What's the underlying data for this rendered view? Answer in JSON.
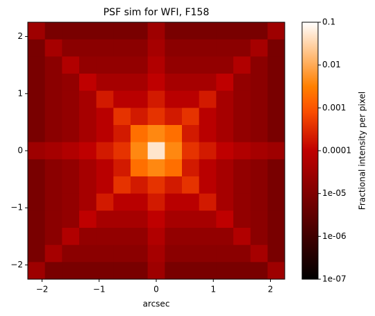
{
  "chart_data": {
    "type": "heatmap",
    "title": "PSF sim for WFI, F158",
    "x_label": "arcsec",
    "colorbar_label": "Fractional intensity per pixel",
    "colormap": "gist_heat",
    "log_color": true,
    "clim": [
      1e-07,
      0.1
    ],
    "cticks": [
      {
        "value": 1e-07,
        "label": "1e-07"
      },
      {
        "value": 1e-06,
        "label": "1e-06"
      },
      {
        "value": 1e-05,
        "label": "1e-05"
      },
      0.0001,
      0.001,
      0.01,
      0.1
    ],
    "xlim": [
      -2.25,
      2.25
    ],
    "ylim": [
      -2.25,
      2.25
    ],
    "xticks": [
      {
        "value": -2,
        "label": "−2"
      },
      {
        "value": -1,
        "label": "−1"
      },
      0,
      1,
      2
    ],
    "yticks": [
      {
        "value": -2,
        "label": "−2"
      },
      {
        "value": -1,
        "label": "−1"
      },
      0,
      1,
      2
    ],
    "z": [
      [
        3e-05,
        8e-06,
        8e-06,
        8e-06,
        8e-06,
        8e-06,
        8e-06,
        3e-05,
        8e-06,
        8e-06,
        8e-06,
        8e-06,
        8e-06,
        8e-06,
        3e-05
      ],
      [
        8e-06,
        4e-05,
        1.5e-05,
        1.5e-05,
        1.5e-05,
        1.5e-05,
        1.5e-05,
        4e-05,
        1.5e-05,
        1.5e-05,
        1.5e-05,
        1.5e-05,
        1.5e-05,
        4e-05,
        8e-06
      ],
      [
        8e-06,
        1.5e-05,
        6e-05,
        2e-05,
        2e-05,
        2e-05,
        2e-05,
        6e-05,
        2e-05,
        2e-05,
        2e-05,
        2e-05,
        6e-05,
        1.5e-05,
        8e-06
      ],
      [
        8e-06,
        1.5e-05,
        2e-05,
        0.0001,
        4e-05,
        4e-05,
        4e-05,
        0.0001,
        4e-05,
        4e-05,
        4e-05,
        0.0001,
        2e-05,
        1.5e-05,
        8e-06
      ],
      [
        8e-06,
        1.5e-05,
        2e-05,
        4e-05,
        0.0002,
        8e-05,
        8e-05,
        0.0002,
        8e-05,
        8e-05,
        0.0002,
        4e-05,
        2e-05,
        1.5e-05,
        8e-06
      ],
      [
        8e-06,
        1.5e-05,
        2e-05,
        4e-05,
        8e-05,
        0.0004,
        0.0002,
        0.0004,
        0.0002,
        0.0004,
        8e-05,
        4e-05,
        2e-05,
        1.5e-05,
        8e-06
      ],
      [
        8e-06,
        1.5e-05,
        2e-05,
        4e-05,
        8e-05,
        0.0002,
        0.002,
        0.004,
        0.002,
        0.0002,
        8e-05,
        4e-05,
        2e-05,
        1.5e-05,
        8e-06
      ],
      [
        3e-05,
        4e-05,
        6e-05,
        0.0001,
        0.0002,
        0.0004,
        0.004,
        0.05,
        0.004,
        0.0004,
        0.0002,
        0.0001,
        6e-05,
        4e-05,
        3e-05
      ],
      [
        8e-06,
        1.5e-05,
        2e-05,
        4e-05,
        8e-05,
        0.0002,
        0.002,
        0.004,
        0.002,
        0.0002,
        8e-05,
        4e-05,
        2e-05,
        1.5e-05,
        8e-06
      ],
      [
        8e-06,
        1.5e-05,
        2e-05,
        4e-05,
        8e-05,
        0.0004,
        0.0002,
        0.0004,
        0.0002,
        0.0004,
        8e-05,
        4e-05,
        2e-05,
        1.5e-05,
        8e-06
      ],
      [
        8e-06,
        1.5e-05,
        2e-05,
        4e-05,
        0.0002,
        8e-05,
        8e-05,
        0.0002,
        8e-05,
        8e-05,
        0.0002,
        4e-05,
        2e-05,
        1.5e-05,
        8e-06
      ],
      [
        8e-06,
        1.5e-05,
        2e-05,
        0.0001,
        4e-05,
        4e-05,
        4e-05,
        0.0001,
        4e-05,
        4e-05,
        4e-05,
        0.0001,
        2e-05,
        1.5e-05,
        8e-06
      ],
      [
        8e-06,
        1.5e-05,
        6e-05,
        2e-05,
        2e-05,
        2e-05,
        2e-05,
        6e-05,
        2e-05,
        2e-05,
        2e-05,
        2e-05,
        6e-05,
        1.5e-05,
        8e-06
      ],
      [
        8e-06,
        4e-05,
        1.5e-05,
        1.5e-05,
        1.5e-05,
        1.5e-05,
        1.5e-05,
        4e-05,
        1.5e-05,
        1.5e-05,
        1.5e-05,
        1.5e-05,
        1.5e-05,
        4e-05,
        8e-06
      ],
      [
        3e-05,
        8e-06,
        8e-06,
        8e-06,
        8e-06,
        8e-06,
        8e-06,
        3e-05,
        8e-06,
        8e-06,
        8e-06,
        8e-06,
        8e-06,
        8e-06,
        3e-05
      ]
    ]
  }
}
